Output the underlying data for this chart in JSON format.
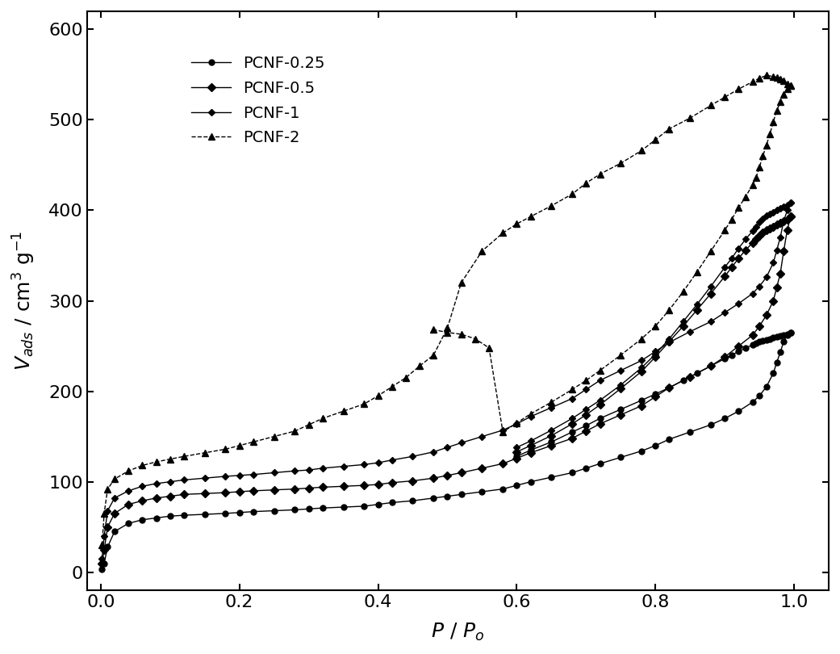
{
  "title": "",
  "xlabel": "P / P$_o$",
  "ylabel": "V$_{ads}$ / cm$^3$ g$^{-1}$",
  "xlim": [
    -0.02,
    1.05
  ],
  "ylim": [
    -20,
    620
  ],
  "yticks": [
    0,
    100,
    200,
    300,
    400,
    500,
    600
  ],
  "xticks": [
    0.0,
    0.2,
    0.4,
    0.6,
    0.8,
    1.0
  ],
  "background_color": "#ffffff",
  "series_color": "#000000",
  "legend_labels": [
    "PCNF-0.25",
    "PCNF-0.5",
    "PCNF-1",
    "PCNF-2"
  ],
  "legend_markers": [
    "o",
    "D",
    "D",
    "^"
  ],
  "series_linestyles": [
    "-",
    "-",
    "-",
    "--"
  ],
  "pcnf025_ads_x": [
    0.002,
    0.005,
    0.01,
    0.02,
    0.04,
    0.06,
    0.08,
    0.1,
    0.12,
    0.15,
    0.18,
    0.2,
    0.22,
    0.25,
    0.28,
    0.3,
    0.32,
    0.35,
    0.38,
    0.4,
    0.42,
    0.45,
    0.48,
    0.5,
    0.52,
    0.55,
    0.58,
    0.6,
    0.62,
    0.65,
    0.68,
    0.7,
    0.72,
    0.75,
    0.78,
    0.8,
    0.82,
    0.85,
    0.88,
    0.9,
    0.92,
    0.94,
    0.95,
    0.96,
    0.97,
    0.975,
    0.98,
    0.985,
    0.99,
    0.995
  ],
  "pcnf025_ads_y": [
    3,
    10,
    28,
    45,
    54,
    58,
    60,
    62,
    63,
    64,
    65,
    66,
    67,
    68,
    69,
    70,
    71,
    72,
    73,
    75,
    77,
    79,
    82,
    84,
    86,
    89,
    92,
    96,
    100,
    105,
    110,
    115,
    120,
    127,
    134,
    140,
    147,
    155,
    163,
    170,
    178,
    188,
    195,
    205,
    220,
    232,
    243,
    255,
    262,
    265
  ],
  "pcnf025_des_x": [
    0.995,
    0.99,
    0.985,
    0.98,
    0.975,
    0.97,
    0.965,
    0.96,
    0.955,
    0.95,
    0.945,
    0.94,
    0.93,
    0.92,
    0.91,
    0.9,
    0.88,
    0.86,
    0.84,
    0.82,
    0.8,
    0.78,
    0.75,
    0.72,
    0.7,
    0.68,
    0.65,
    0.62,
    0.6
  ],
  "pcnf025_des_y": [
    265,
    263,
    262,
    261,
    260,
    259,
    258,
    257,
    256,
    255,
    253,
    251,
    248,
    244,
    240,
    236,
    228,
    220,
    212,
    204,
    197,
    190,
    180,
    170,
    162,
    155,
    144,
    135,
    128
  ],
  "pcnf05_ads_x": [
    0.002,
    0.005,
    0.01,
    0.02,
    0.04,
    0.06,
    0.08,
    0.1,
    0.12,
    0.15,
    0.18,
    0.2,
    0.22,
    0.25,
    0.28,
    0.3,
    0.32,
    0.35,
    0.38,
    0.4,
    0.42,
    0.45,
    0.48,
    0.5,
    0.52,
    0.55,
    0.58,
    0.6,
    0.62,
    0.65,
    0.68,
    0.7,
    0.72,
    0.75,
    0.78,
    0.8,
    0.82,
    0.85,
    0.88,
    0.9,
    0.92,
    0.94,
    0.95,
    0.96,
    0.97,
    0.975,
    0.98,
    0.985,
    0.99,
    0.995
  ],
  "pcnf05_ads_y": [
    10,
    25,
    50,
    65,
    75,
    79,
    82,
    84,
    86,
    87,
    88,
    89,
    90,
    91,
    92,
    93,
    94,
    95,
    96,
    97,
    99,
    101,
    104,
    107,
    110,
    115,
    120,
    126,
    132,
    140,
    148,
    156,
    164,
    174,
    184,
    194,
    204,
    216,
    228,
    238,
    250,
    262,
    272,
    284,
    300,
    315,
    330,
    355,
    378,
    393
  ],
  "pcnf05_des_x": [
    0.995,
    0.99,
    0.985,
    0.98,
    0.975,
    0.97,
    0.965,
    0.96,
    0.955,
    0.95,
    0.945,
    0.94,
    0.93,
    0.92,
    0.91,
    0.9,
    0.88,
    0.86,
    0.84,
    0.82,
    0.8,
    0.78,
    0.75,
    0.72,
    0.7,
    0.68,
    0.65,
    0.62,
    0.6
  ],
  "pcnf05_des_y": [
    393,
    390,
    388,
    386,
    384,
    382,
    380,
    378,
    375,
    372,
    368,
    364,
    356,
    347,
    337,
    327,
    308,
    290,
    272,
    255,
    238,
    222,
    203,
    185,
    174,
    164,
    151,
    140,
    133
  ],
  "pcnf1_ads_x": [
    0.002,
    0.005,
    0.01,
    0.02,
    0.04,
    0.06,
    0.08,
    0.1,
    0.12,
    0.15,
    0.18,
    0.2,
    0.22,
    0.25,
    0.28,
    0.3,
    0.32,
    0.35,
    0.38,
    0.4,
    0.42,
    0.45,
    0.48,
    0.5,
    0.52,
    0.55,
    0.58,
    0.6,
    0.62,
    0.65,
    0.68,
    0.7,
    0.72,
    0.75,
    0.78,
    0.8,
    0.82,
    0.85,
    0.88,
    0.9,
    0.92,
    0.94,
    0.95,
    0.96,
    0.97,
    0.975,
    0.98,
    0.985,
    0.99,
    0.995
  ],
  "pcnf1_ads_y": [
    15,
    40,
    68,
    82,
    90,
    95,
    98,
    100,
    102,
    104,
    106,
    107,
    108,
    110,
    112,
    113,
    115,
    117,
    119,
    121,
    124,
    128,
    133,
    138,
    143,
    150,
    157,
    164,
    172,
    182,
    192,
    202,
    212,
    223,
    234,
    244,
    254,
    266,
    277,
    287,
    297,
    308,
    316,
    326,
    342,
    356,
    370,
    388,
    400,
    408
  ],
  "pcnf1_des_x": [
    0.995,
    0.99,
    0.985,
    0.98,
    0.975,
    0.97,
    0.965,
    0.96,
    0.955,
    0.95,
    0.945,
    0.94,
    0.93,
    0.92,
    0.91,
    0.9,
    0.88,
    0.86,
    0.84,
    0.82,
    0.8,
    0.78,
    0.75,
    0.72,
    0.7,
    0.68,
    0.65,
    0.62,
    0.6
  ],
  "pcnf1_des_y": [
    408,
    406,
    404,
    402,
    400,
    398,
    396,
    394,
    391,
    387,
    382,
    377,
    368,
    358,
    347,
    337,
    316,
    296,
    277,
    258,
    241,
    226,
    207,
    190,
    180,
    170,
    157,
    145,
    138
  ],
  "pcnf2_ads_x": [
    0.002,
    0.005,
    0.01,
    0.02,
    0.04,
    0.06,
    0.08,
    0.1,
    0.12,
    0.15,
    0.18,
    0.2,
    0.22,
    0.25,
    0.28,
    0.3,
    0.32,
    0.35,
    0.38,
    0.4,
    0.42,
    0.44,
    0.46,
    0.48,
    0.5,
    0.52,
    0.55,
    0.58,
    0.6,
    0.62,
    0.65,
    0.68,
    0.7,
    0.72,
    0.75,
    0.78,
    0.8,
    0.82,
    0.85,
    0.88,
    0.9,
    0.92,
    0.94,
    0.95,
    0.96,
    0.97,
    0.975,
    0.98,
    0.985,
    0.99,
    0.995
  ],
  "pcnf2_ads_y": [
    30,
    65,
    92,
    103,
    112,
    118,
    122,
    125,
    128,
    132,
    136,
    140,
    144,
    150,
    156,
    163,
    170,
    178,
    186,
    195,
    205,
    215,
    228,
    240,
    270,
    320,
    355,
    375,
    385,
    393,
    405,
    418,
    430,
    440,
    452,
    466,
    478,
    490,
    502,
    516,
    525,
    534,
    542,
    546,
    549,
    548,
    547,
    545,
    543,
    540,
    538
  ],
  "pcnf2_des_x": [
    0.995,
    0.99,
    0.985,
    0.98,
    0.975,
    0.97,
    0.965,
    0.96,
    0.955,
    0.95,
    0.945,
    0.94,
    0.93,
    0.92,
    0.91,
    0.9,
    0.88,
    0.86,
    0.84,
    0.82,
    0.8,
    0.78,
    0.75,
    0.72,
    0.7,
    0.68,
    0.65,
    0.62,
    0.6,
    0.58,
    0.56,
    0.54,
    0.52,
    0.5,
    0.48
  ],
  "pcnf2_des_y": [
    538,
    534,
    528,
    520,
    510,
    498,
    484,
    472,
    460,
    448,
    436,
    428,
    415,
    403,
    390,
    378,
    355,
    332,
    310,
    290,
    272,
    258,
    240,
    223,
    212,
    202,
    188,
    175,
    165,
    155,
    248,
    258,
    263,
    265,
    268
  ]
}
